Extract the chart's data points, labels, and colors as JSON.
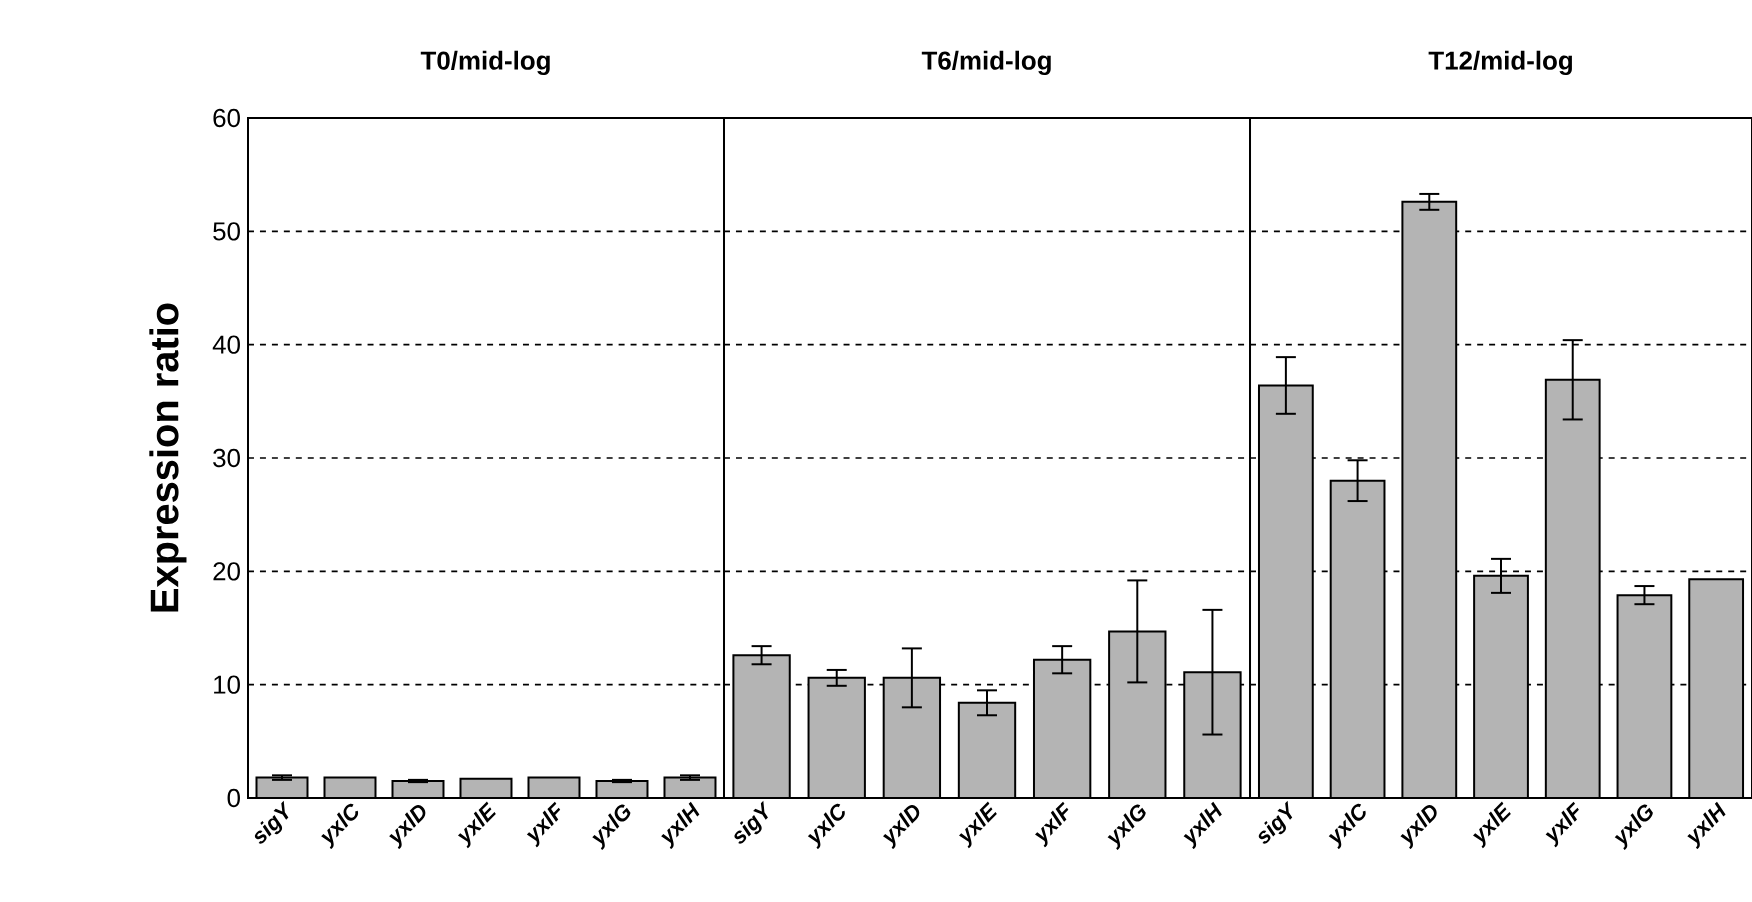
{
  "chart_data": [
    {
      "type": "bar",
      "title": "T0/mid-log",
      "ylabel": "Expression ratio",
      "categories": [
        "sigY",
        "yxlC",
        "yxlD",
        "yxlE",
        "yxlF",
        "yxlG",
        "yxlH"
      ],
      "values": [
        1.8,
        1.8,
        1.5,
        1.7,
        1.8,
        1.5,
        1.8
      ],
      "errors": [
        0.2,
        null,
        0.1,
        null,
        null,
        0.1,
        0.2
      ],
      "color": "#b4b4b4",
      "ylim": [
        0,
        60
      ],
      "yticks": [
        0,
        10,
        20,
        30,
        40,
        50,
        60
      ],
      "grid": "y"
    },
    {
      "type": "bar",
      "title": "T6/mid-log",
      "categories": [
        "sigY",
        "yxlC",
        "yxlD",
        "yxlE",
        "yxlF",
        "yxlG",
        "yxlH"
      ],
      "values": [
        12.6,
        10.6,
        10.6,
        8.4,
        12.2,
        14.7,
        11.1
      ],
      "errors": [
        0.8,
        0.7,
        2.6,
        1.1,
        1.2,
        4.5,
        5.5
      ],
      "color": "#b4b4b4",
      "ylim": [
        0,
        60
      ],
      "yticks": [
        0,
        10,
        20,
        30,
        40,
        50,
        60
      ],
      "grid": "y",
      "tick_labels": "x"
    },
    {
      "type": "bar",
      "title": "T12/mid-log",
      "categories": [
        "sigY",
        "yxlC",
        "yxlD",
        "yxlE",
        "yxlF",
        "yxlG",
        "yxlH"
      ],
      "values": [
        36.4,
        28.0,
        52.6,
        19.6,
        36.9,
        17.9,
        19.3
      ],
      "errors": [
        2.5,
        1.8,
        0.7,
        1.5,
        3.5,
        0.8,
        null
      ],
      "color": "#b4b4b4",
      "ylim": [
        0,
        60
      ],
      "yticks": [
        0,
        10,
        20,
        30,
        40,
        50,
        60
      ],
      "grid": "y",
      "tick_labels": "x"
    }
  ]
}
